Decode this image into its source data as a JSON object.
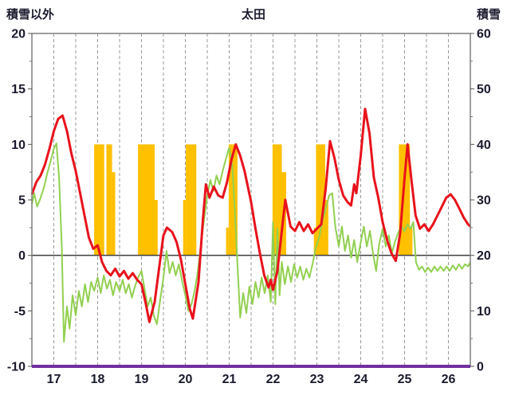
{
  "chart_data": {
    "type": "line",
    "title": "太田",
    "left_axis": {
      "label": "積雪以外",
      "min": -10,
      "max": 20,
      "tick_values": [
        20,
        15,
        10,
        5,
        0,
        -5,
        -10
      ]
    },
    "right_axis": {
      "label": "積雪",
      "min": 0,
      "max": 60,
      "tick_values": [
        60,
        50,
        40,
        30,
        20,
        10,
        0
      ]
    },
    "x_axis": {
      "min": 16.5,
      "max": 26.5,
      "tick_days": [
        17,
        18,
        19,
        20,
        21,
        22,
        23,
        24,
        25,
        26
      ],
      "tick_labels": [
        "17",
        "18",
        "19",
        "20",
        "21",
        "22",
        "23",
        "24",
        "25",
        "26"
      ]
    },
    "grid": {
      "vertical_dashed_step": 0.5,
      "color": "#999999",
      "zero_line_color": "#3f3f3f",
      "border_color": "#7f7f7f"
    },
    "series": [
      {
        "name": "orange-bars",
        "type": "bar",
        "axis": "left",
        "color": "#ffc000",
        "segments": [
          [
            17.92,
            18.15,
            10
          ],
          [
            18.2,
            18.33,
            10
          ],
          [
            18.33,
            18.4,
            7.5
          ],
          [
            18.92,
            19.3,
            10
          ],
          [
            19.3,
            19.37,
            5
          ],
          [
            19.95,
            20.01,
            5
          ],
          [
            20.01,
            20.25,
            10
          ],
          [
            20.93,
            20.99,
            2.5
          ],
          [
            20.99,
            21.19,
            10
          ],
          [
            21.99,
            22.2,
            10
          ],
          [
            22.2,
            22.3,
            7.5
          ],
          [
            22.93,
            22.98,
            2.5
          ],
          [
            22.98,
            23.19,
            10
          ],
          [
            23.19,
            23.26,
            5
          ],
          [
            24.87,
            25.12,
            10
          ],
          [
            25.12,
            25.18,
            2.5
          ]
        ]
      },
      {
        "name": "green-line",
        "type": "line",
        "axis": "left",
        "color": "#92d050",
        "width": 2,
        "points": [
          [
            16.5,
            4.6
          ],
          [
            16.55,
            5.6
          ],
          [
            16.62,
            4.4
          ],
          [
            16.7,
            5.2
          ],
          [
            16.78,
            6.2
          ],
          [
            16.85,
            7.4
          ],
          [
            16.92,
            8.4
          ],
          [
            17.0,
            9.6
          ],
          [
            17.06,
            10.1
          ],
          [
            17.12,
            7.0
          ],
          [
            17.18,
            1.0
          ],
          [
            17.23,
            -7.8
          ],
          [
            17.3,
            -4.6
          ],
          [
            17.36,
            -6.6
          ],
          [
            17.43,
            -3.6
          ],
          [
            17.5,
            -5.4
          ],
          [
            17.57,
            -3.2
          ],
          [
            17.64,
            -4.6
          ],
          [
            17.71,
            -2.6
          ],
          [
            17.78,
            -4.2
          ],
          [
            17.85,
            -2.4
          ],
          [
            17.92,
            -3.2
          ],
          [
            18.0,
            -2.0
          ],
          [
            18.07,
            -3.4
          ],
          [
            18.14,
            -1.8
          ],
          [
            18.21,
            -3.0
          ],
          [
            18.28,
            -2.2
          ],
          [
            18.35,
            -3.6
          ],
          [
            18.42,
            -2.4
          ],
          [
            18.5,
            -3.2
          ],
          [
            18.57,
            -2.2
          ],
          [
            18.64,
            -3.4
          ],
          [
            18.71,
            -2.6
          ],
          [
            18.78,
            -3.8
          ],
          [
            18.85,
            -2.8
          ],
          [
            18.92,
            -2.0
          ],
          [
            19.0,
            -1.4
          ],
          [
            19.07,
            -3.0
          ],
          [
            19.14,
            -4.6
          ],
          [
            19.21,
            -3.8
          ],
          [
            19.28,
            -5.4
          ],
          [
            19.35,
            -6.2
          ],
          [
            19.42,
            -4.2
          ],
          [
            19.5,
            -2.0
          ],
          [
            19.57,
            0.4
          ],
          [
            19.64,
            -1.6
          ],
          [
            19.71,
            -0.6
          ],
          [
            19.78,
            -1.8
          ],
          [
            19.85,
            -0.8
          ],
          [
            19.92,
            -2.2
          ],
          [
            20.0,
            -3.6
          ],
          [
            20.07,
            -5.0
          ],
          [
            20.14,
            -4.4
          ],
          [
            20.21,
            -3.2
          ],
          [
            20.28,
            -1.6
          ],
          [
            20.35,
            0.8
          ],
          [
            20.42,
            3.0
          ],
          [
            20.5,
            5.4
          ],
          [
            20.57,
            6.8
          ],
          [
            20.64,
            5.8
          ],
          [
            20.71,
            7.2
          ],
          [
            20.78,
            6.4
          ],
          [
            20.85,
            7.6
          ],
          [
            20.92,
            8.6
          ],
          [
            21.0,
            9.7
          ],
          [
            21.07,
            8.0
          ],
          [
            21.13,
            4.0
          ],
          [
            21.19,
            -1.0
          ],
          [
            21.25,
            -5.6
          ],
          [
            21.32,
            -3.4
          ],
          [
            21.39,
            -5.2
          ],
          [
            21.46,
            -2.8
          ],
          [
            21.53,
            -4.4
          ],
          [
            21.6,
            -2.4
          ],
          [
            21.67,
            -3.8
          ],
          [
            21.74,
            -2.0
          ],
          [
            21.81,
            -3.4
          ],
          [
            21.88,
            -1.8
          ],
          [
            21.95,
            -4.2
          ],
          [
            22.0,
            3.0
          ],
          [
            22.05,
            -4.4
          ],
          [
            22.1,
            2.4
          ],
          [
            22.15,
            -3.6
          ],
          [
            22.2,
            -0.6
          ],
          [
            22.27,
            -2.6
          ],
          [
            22.34,
            -1.0
          ],
          [
            22.41,
            -2.4
          ],
          [
            22.48,
            -0.8
          ],
          [
            22.55,
            -2.0
          ],
          [
            22.62,
            -1.0
          ],
          [
            22.69,
            -2.2
          ],
          [
            22.76,
            -1.2
          ],
          [
            22.83,
            -2.0
          ],
          [
            22.9,
            -0.8
          ],
          [
            22.97,
            0.6
          ],
          [
            23.05,
            1.6
          ],
          [
            23.12,
            3.0
          ],
          [
            23.2,
            4.2
          ],
          [
            23.28,
            5.4
          ],
          [
            23.35,
            5.6
          ],
          [
            23.42,
            2.6
          ],
          [
            23.5,
            0.8
          ],
          [
            23.57,
            2.6
          ],
          [
            23.64,
            0.4
          ],
          [
            23.71,
            1.8
          ],
          [
            23.78,
            -0.2
          ],
          [
            23.85,
            1.4
          ],
          [
            23.92,
            -0.6
          ],
          [
            24.0,
            1.2
          ],
          [
            24.07,
            2.6
          ],
          [
            24.14,
            0.8
          ],
          [
            24.21,
            2.2
          ],
          [
            24.28,
            0.2
          ],
          [
            24.35,
            -1.4
          ],
          [
            24.42,
            1.0
          ],
          [
            24.5,
            2.4
          ],
          [
            24.57,
            0.8
          ],
          [
            24.64,
            1.8
          ],
          [
            24.71,
            0.2
          ],
          [
            24.78,
            1.2
          ],
          [
            24.85,
            2.0
          ],
          [
            24.92,
            2.6
          ],
          [
            25.0,
            2.2
          ],
          [
            25.07,
            2.8
          ],
          [
            25.14,
            2.4
          ],
          [
            25.2,
            3.0
          ],
          [
            25.26,
            -0.6
          ],
          [
            25.33,
            -1.3
          ],
          [
            25.4,
            -1.0
          ],
          [
            25.47,
            -1.5
          ],
          [
            25.54,
            -1.1
          ],
          [
            25.61,
            -1.5
          ],
          [
            25.68,
            -1.0
          ],
          [
            25.75,
            -1.4
          ],
          [
            25.82,
            -1.0
          ],
          [
            25.89,
            -1.4
          ],
          [
            25.96,
            -1.0
          ],
          [
            26.03,
            -1.4
          ],
          [
            26.1,
            -0.9
          ],
          [
            26.17,
            -1.3
          ],
          [
            26.24,
            -0.8
          ],
          [
            26.31,
            -1.2
          ],
          [
            26.38,
            -0.8
          ],
          [
            26.45,
            -1.0
          ],
          [
            26.5,
            -0.6
          ]
        ]
      },
      {
        "name": "red-line",
        "type": "line",
        "axis": "left",
        "color": "#e8121c",
        "width": 3,
        "points": [
          [
            16.5,
            5.5
          ],
          [
            16.6,
            6.6
          ],
          [
            16.7,
            7.2
          ],
          [
            16.8,
            8.2
          ],
          [
            16.9,
            9.6
          ],
          [
            17.0,
            11.2
          ],
          [
            17.1,
            12.3
          ],
          [
            17.2,
            12.6
          ],
          [
            17.3,
            11.2
          ],
          [
            17.4,
            9.2
          ],
          [
            17.5,
            7.6
          ],
          [
            17.6,
            5.6
          ],
          [
            17.7,
            3.6
          ],
          [
            17.8,
            1.6
          ],
          [
            17.9,
            0.6
          ],
          [
            18.0,
            0.9
          ],
          [
            18.1,
            -0.6
          ],
          [
            18.2,
            -1.4
          ],
          [
            18.3,
            -1.8
          ],
          [
            18.4,
            -1.2
          ],
          [
            18.5,
            -1.9
          ],
          [
            18.6,
            -1.4
          ],
          [
            18.7,
            -2.1
          ],
          [
            18.8,
            -1.6
          ],
          [
            18.9,
            -2.2
          ],
          [
            19.0,
            -2.6
          ],
          [
            19.1,
            -4.4
          ],
          [
            19.18,
            -6.0
          ],
          [
            19.3,
            -4.2
          ],
          [
            19.4,
            -1.2
          ],
          [
            19.5,
            1.8
          ],
          [
            19.58,
            2.5
          ],
          [
            19.7,
            2.1
          ],
          [
            19.8,
            1.2
          ],
          [
            19.9,
            -0.4
          ],
          [
            20.0,
            -2.6
          ],
          [
            20.1,
            -4.8
          ],
          [
            20.17,
            -5.7
          ],
          [
            20.3,
            -2.4
          ],
          [
            20.4,
            3.2
          ],
          [
            20.47,
            6.4
          ],
          [
            20.55,
            5.2
          ],
          [
            20.65,
            6.2
          ],
          [
            20.75,
            5.4
          ],
          [
            20.85,
            5.2
          ],
          [
            20.95,
            6.6
          ],
          [
            21.05,
            8.6
          ],
          [
            21.15,
            10.0
          ],
          [
            21.25,
            9.0
          ],
          [
            21.35,
            7.6
          ],
          [
            21.5,
            4.8
          ],
          [
            21.6,
            2.4
          ],
          [
            21.7,
            0.2
          ],
          [
            21.8,
            -1.8
          ],
          [
            21.9,
            -2.9
          ],
          [
            21.95,
            -2.2
          ],
          [
            22.0,
            -3.1
          ],
          [
            22.1,
            -1.4
          ],
          [
            22.2,
            2.2
          ],
          [
            22.28,
            5.0
          ],
          [
            22.4,
            2.6
          ],
          [
            22.5,
            2.2
          ],
          [
            22.6,
            3.0
          ],
          [
            22.7,
            2.2
          ],
          [
            22.8,
            2.8
          ],
          [
            22.9,
            2.0
          ],
          [
            23.0,
            2.4
          ],
          [
            23.1,
            2.8
          ],
          [
            23.2,
            6.0
          ],
          [
            23.3,
            10.3
          ],
          [
            23.4,
            8.8
          ],
          [
            23.5,
            6.8
          ],
          [
            23.6,
            5.4
          ],
          [
            23.7,
            4.8
          ],
          [
            23.78,
            4.5
          ],
          [
            23.85,
            6.4
          ],
          [
            23.9,
            5.6
          ],
          [
            24.0,
            9.0
          ],
          [
            24.1,
            13.2
          ],
          [
            24.2,
            11.0
          ],
          [
            24.3,
            7.0
          ],
          [
            24.4,
            5.2
          ],
          [
            24.5,
            3.0
          ],
          [
            24.6,
            1.4
          ],
          [
            24.7,
            0.2
          ],
          [
            24.8,
            -0.5
          ],
          [
            24.9,
            2.0
          ],
          [
            25.0,
            7.0
          ],
          [
            25.07,
            10.0
          ],
          [
            25.15,
            7.0
          ],
          [
            25.25,
            3.6
          ],
          [
            25.35,
            2.4
          ],
          [
            25.45,
            2.8
          ],
          [
            25.55,
            2.2
          ],
          [
            25.65,
            2.8
          ],
          [
            25.75,
            3.6
          ],
          [
            25.85,
            4.4
          ],
          [
            25.95,
            5.2
          ],
          [
            26.05,
            5.5
          ],
          [
            26.15,
            5.0
          ],
          [
            26.25,
            4.2
          ],
          [
            26.35,
            3.4
          ],
          [
            26.45,
            2.8
          ],
          [
            26.5,
            2.6
          ]
        ]
      },
      {
        "name": "purple-line",
        "type": "line",
        "axis": "right",
        "color": "#7030a0",
        "width": 4,
        "points": [
          [
            16.5,
            0
          ],
          [
            26.5,
            0
          ]
        ]
      }
    ]
  }
}
